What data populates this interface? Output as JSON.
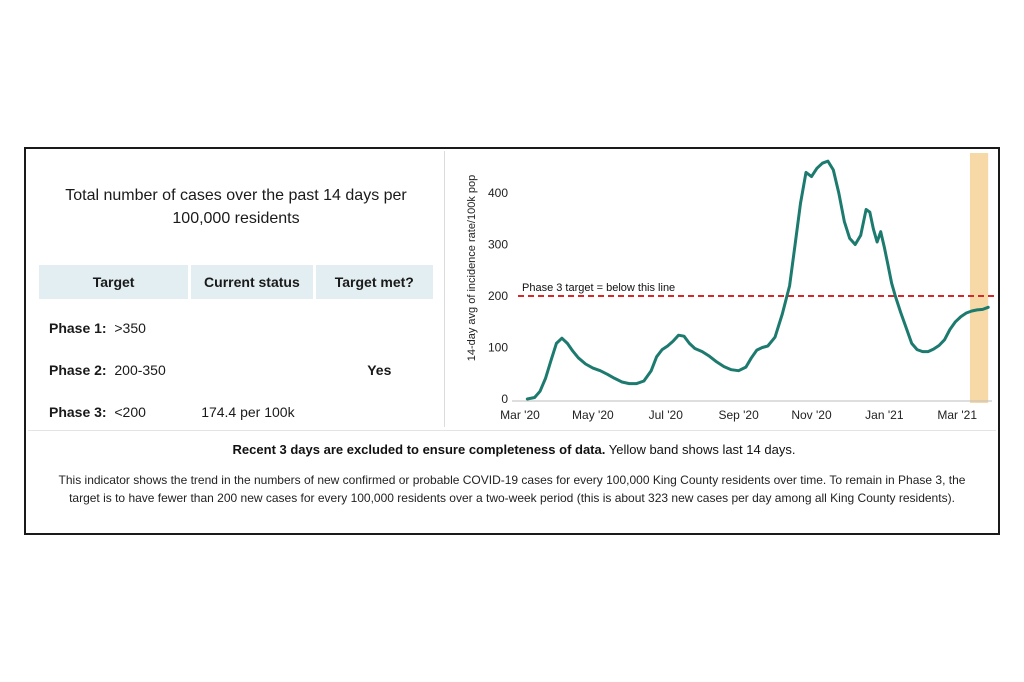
{
  "panel": {
    "title": "Total number of cases over the past 14 days per 100,000 residents"
  },
  "targets_table": {
    "headers": [
      "Target",
      "Current status",
      "Target met?"
    ],
    "rows": [
      {
        "phase": "Phase 1:",
        "range": ">350",
        "status": "",
        "met": ""
      },
      {
        "phase": "Phase 2:",
        "range": "200-350",
        "status": "",
        "met": "Yes"
      },
      {
        "phase": "Phase 3:",
        "range": "<200",
        "status": "174.4 per 100k",
        "met": ""
      }
    ]
  },
  "notes": {
    "bold": "Recent 3 days are excluded to ensure completeness of data.",
    "normal": " Yellow band shows last 14 days.",
    "description": "This indicator shows the trend in the numbers of new confirmed or probable COVID-19 cases for every 100,000 King County residents over time. To remain in Phase 3, the target is to have fewer than 200 new cases for every 100,000 residents over a two-week period (this is about 323 new cases per day among all King County residents)."
  },
  "colors": {
    "line": "#1c7a6e",
    "target_line": "#d62828",
    "band": "#f6d9a6",
    "header_bg": "#e2eef2",
    "yes": "#1e8a2c"
  },
  "chart_data": {
    "type": "line",
    "title": "",
    "xlabel": "",
    "ylabel": "14-day avg of incidence rate/100k pop",
    "ylim": [
      0,
      470
    ],
    "xlim": [
      0,
      12.9
    ],
    "yticks": [
      0,
      100,
      200,
      300,
      400
    ],
    "xticks": [
      {
        "x": 0,
        "label": "Mar '20"
      },
      {
        "x": 2,
        "label": "May '20"
      },
      {
        "x": 4,
        "label": "Jul '20"
      },
      {
        "x": 6,
        "label": "Sep '20"
      },
      {
        "x": 8,
        "label": "Nov '20"
      },
      {
        "x": 10,
        "label": "Jan '21"
      },
      {
        "x": 12,
        "label": "Mar '21"
      }
    ],
    "target": {
      "value": 200,
      "label": "Phase 3 target =  below this line"
    },
    "band": {
      "x_start": 12.35,
      "x_end": 12.85,
      "label": "last 14 days"
    },
    "series": [
      {
        "name": "14-day avg incidence per 100k",
        "x": [
          0.2,
          0.4,
          0.55,
          0.7,
          0.85,
          1.0,
          1.15,
          1.3,
          1.45,
          1.6,
          1.8,
          2.0,
          2.2,
          2.4,
          2.6,
          2.8,
          3.0,
          3.2,
          3.4,
          3.6,
          3.75,
          3.9,
          4.05,
          4.2,
          4.35,
          4.5,
          4.65,
          4.8,
          5.0,
          5.2,
          5.4,
          5.6,
          5.8,
          6.0,
          6.2,
          6.35,
          6.5,
          6.65,
          6.8,
          7.0,
          7.2,
          7.4,
          7.55,
          7.7,
          7.85,
          8.0,
          8.15,
          8.3,
          8.45,
          8.6,
          8.75,
          8.9,
          9.05,
          9.2,
          9.35,
          9.5,
          9.6,
          9.7,
          9.8,
          9.9,
          10.0,
          10.1,
          10.2,
          10.3,
          10.45,
          10.6,
          10.75,
          10.9,
          11.05,
          11.2,
          11.35,
          11.5,
          11.65,
          11.8,
          11.95,
          12.1,
          12.25,
          12.4,
          12.55,
          12.7,
          12.85
        ],
        "values": [
          0,
          3,
          15,
          40,
          75,
          108,
          118,
          108,
          93,
          80,
          68,
          60,
          55,
          48,
          40,
          33,
          30,
          30,
          35,
          55,
          82,
          96,
          103,
          112,
          124,
          122,
          108,
          98,
          92,
          83,
          72,
          63,
          57,
          55,
          62,
          80,
          95,
          100,
          103,
          120,
          165,
          220,
          300,
          380,
          440,
          432,
          448,
          458,
          462,
          445,
          400,
          345,
          312,
          300,
          318,
          368,
          363,
          330,
          305,
          325,
          295,
          260,
          225,
          200,
          168,
          138,
          108,
          96,
          92,
          92,
          97,
          104,
          115,
          135,
          150,
          160,
          167,
          171,
          173,
          174,
          178
        ]
      }
    ]
  }
}
